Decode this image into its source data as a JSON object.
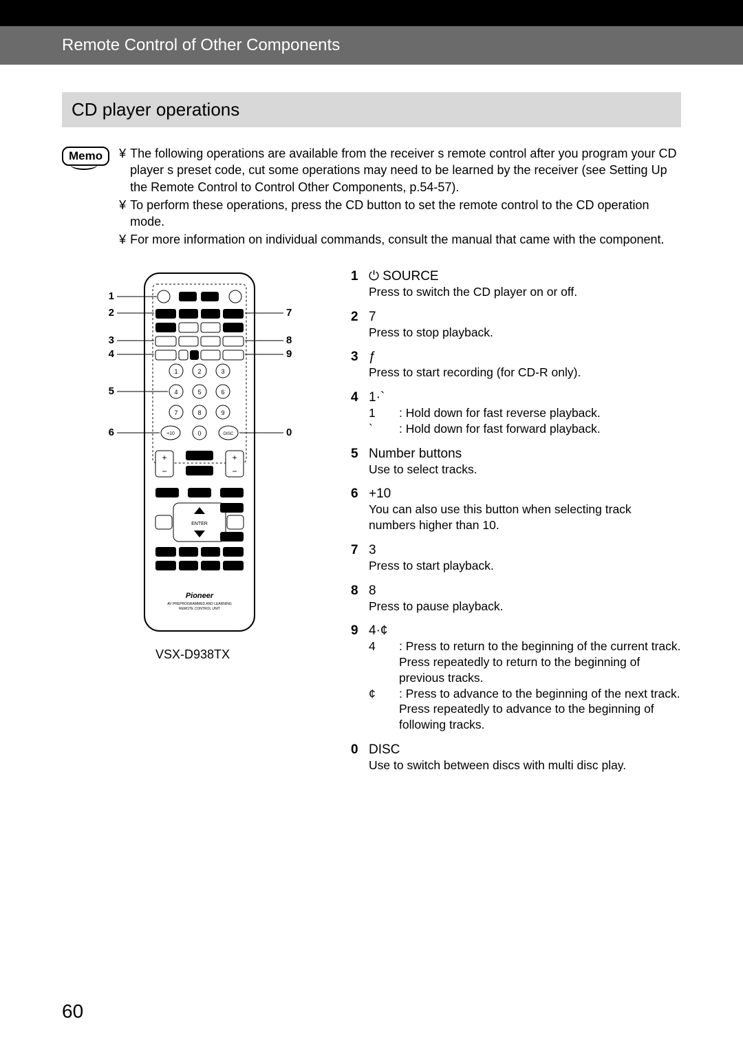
{
  "header": "Remote Control of Other Components",
  "section_title": "CD player operations",
  "memo_label": "Memo",
  "memo_bullet": "¥",
  "memo_items": [
    "The following operations are available from the receiver s remote control after you program your CD player s preset code, cut some operations may need to be learned by the receiver (see  Setting Up the Remote Control to Control Other Components,  p.54-57).",
    "To perform these operations, press the CD button to set the remote control to the CD operation mode.",
    "For more information on individual commands, consult the manual that came with the component."
  ],
  "remote_model": "VSX-D938TX",
  "page_number": "60",
  "callouts_left": [
    "1",
    "2",
    "3",
    "4",
    "5",
    "6"
  ],
  "callouts_right": [
    "7",
    "8",
    "9",
    "0"
  ],
  "operations": [
    {
      "n": "1",
      "label": "⏻ SOURCE",
      "desc_simple": "Press to switch the CD player on or off."
    },
    {
      "n": "2",
      "label": "7",
      "desc_simple": "Press to stop playback."
    },
    {
      "n": "3",
      "label": "ƒ",
      "desc_simple": "Press to start recording (for CD-R only)."
    },
    {
      "n": "4",
      "label": "1·`",
      "sub": [
        {
          "sym": "1",
          "text": ": Hold down for fast reverse playback."
        },
        {
          "sym": "`",
          "text": ": Hold down for fast forward playback."
        }
      ]
    },
    {
      "n": "5",
      "label": "Number buttons",
      "desc_simple": "Use to select tracks."
    },
    {
      "n": "6",
      "label": "+10",
      "desc_simple": "You can also use this button when selecting track numbers higher than 10."
    },
    {
      "n": "7",
      "label": "3",
      "desc_simple": "Press to start playback."
    },
    {
      "n": "8",
      "label": "8",
      "desc_simple": "Press to pause playback."
    },
    {
      "n": "9",
      "label": "4·¢",
      "sub": [
        {
          "sym": "4",
          "text": ": Press to return to the beginning of the current track. Press repeatedly to return to the beginning of previous tracks."
        },
        {
          "sym": "¢",
          "text": ": Press to advance to the beginning of the next track. Press repeatedly to advance to the beginning of following tracks."
        }
      ]
    },
    {
      "n": "0",
      "label": "DISC",
      "desc_simple": "Use to switch between discs with multi disc play."
    }
  ],
  "colors": {
    "black": "#000000",
    "header_bg": "#6b6b6b",
    "section_bg": "#d8d8d8",
    "page_bg": "#ffffff"
  }
}
